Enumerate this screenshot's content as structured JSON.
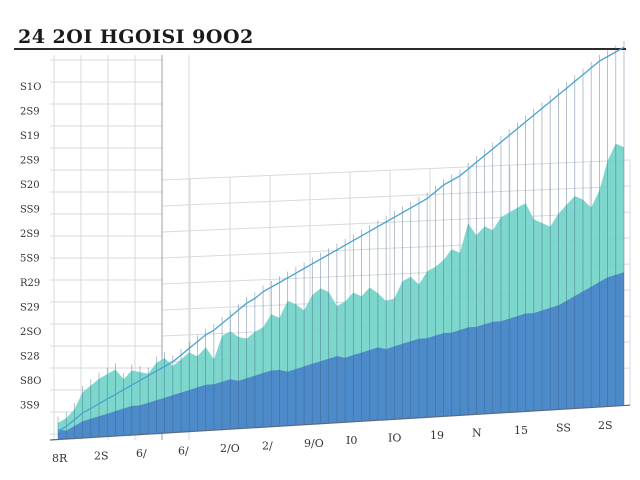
{
  "chart_data": {
    "type": "area",
    "title": "24 2OI HGOISI 9OO2",
    "xlabel": "",
    "ylabel": "",
    "y_tick_labels": [
      "S1O",
      "2S9",
      "S19",
      "2S9",
      "S20",
      "SS9",
      "2S9",
      "5S9",
      "R29",
      "S29",
      "2SO",
      "S28",
      "S8O",
      "3S9"
    ],
    "x_tick_labels": [
      "8R",
      "2S",
      "6/",
      "6/",
      "2/O",
      "2/",
      "9/O",
      "I0",
      "IO",
      "19",
      "N",
      "15",
      "SS",
      "2S"
    ],
    "x": [
      1,
      2,
      3,
      4,
      5,
      6,
      7,
      8,
      9,
      10,
      11,
      12,
      13,
      14,
      15,
      16,
      17,
      18,
      19,
      20,
      21,
      22,
      23,
      24,
      25,
      26,
      27,
      28,
      29,
      30,
      31,
      32,
      33,
      34,
      35,
      36,
      37,
      38,
      39,
      40,
      41,
      42,
      43,
      44,
      45,
      46,
      47,
      48,
      49,
      50,
      51,
      52,
      53,
      54,
      55,
      56,
      57,
      58,
      59,
      60,
      61,
      62,
      63,
      64,
      65,
      66,
      67,
      68,
      69,
      70
    ],
    "series": [
      {
        "name": "",
        "values": [
          5,
          4,
          6,
          8,
          9,
          10,
          11,
          12,
          13,
          14,
          14,
          15,
          16,
          17,
          18,
          19,
          20,
          21,
          22,
          22,
          23,
          24,
          23,
          24,
          25,
          26,
          27,
          27,
          26,
          27,
          28,
          29,
          30,
          31,
          32,
          31,
          32,
          33,
          34,
          35,
          34,
          35,
          36,
          37,
          38,
          38,
          39,
          40,
          40,
          41,
          42,
          42,
          43,
          44,
          44,
          45,
          46,
          47,
          47,
          48,
          49,
          50,
          52,
          54,
          56,
          58,
          60,
          62,
          63,
          64
        ]
      },
      {
        "name": "",
        "values": [
          8,
          10,
          14,
          22,
          25,
          28,
          30,
          32,
          27,
          31,
          30,
          29,
          34,
          36,
          32,
          35,
          38,
          36,
          40,
          34,
          45,
          47,
          44,
          43,
          46,
          48,
          54,
          52,
          60,
          58,
          55,
          62,
          65,
          63,
          56,
          58,
          62,
          60,
          64,
          61,
          57,
          58,
          66,
          68,
          64,
          70,
          72,
          75,
          80,
          78,
          92,
          86,
          90,
          88,
          94,
          96,
          98,
          100,
          92,
          90,
          88,
          94,
          98,
          102,
          100,
          96,
          104,
          118,
          126,
          124
        ]
      }
    ],
    "trend_line": [
      4,
      6,
      9,
      12,
      14,
      16,
      18,
      20,
      22,
      24,
      26,
      28,
      30,
      32,
      34,
      37,
      40,
      43,
      46,
      48,
      51,
      54,
      57,
      60,
      62,
      65,
      67,
      69,
      71,
      73,
      75,
      77,
      79,
      81,
      83,
      85,
      87,
      89,
      91,
      93,
      95,
      97,
      99,
      101,
      103,
      105,
      108,
      111,
      113,
      115,
      118,
      121,
      124,
      127,
      130,
      133,
      136,
      139,
      142,
      145,
      148,
      151,
      154,
      157,
      160,
      163,
      166,
      168,
      170,
      172
    ],
    "ylim": [
      0,
      180
    ],
    "grid": true,
    "legend": "none",
    "colors": {
      "lower_area": "#4b86c8",
      "upper_area": "#6fd3c8",
      "trend_line": "#4aa3cf",
      "grid": "#d6dadd",
      "bar_line": "#3d5d80"
    }
  }
}
